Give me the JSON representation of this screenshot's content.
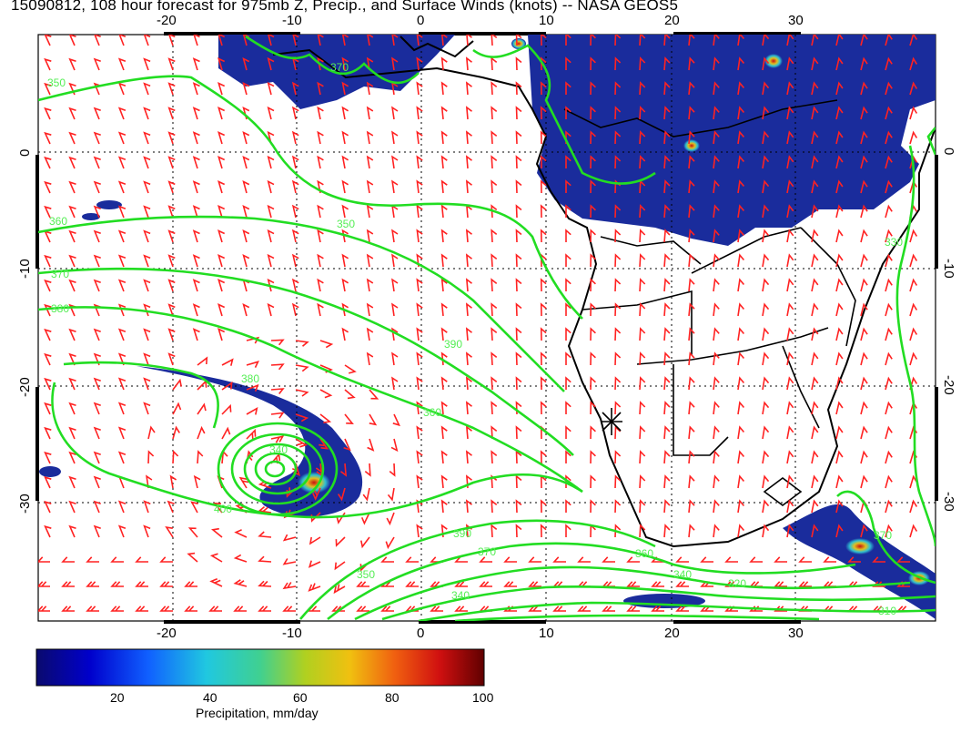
{
  "title": "15090812, 108 hour forecast for 975mb Z, Precip., and Surface Winds (knots) -- NASA GEOS5",
  "map": {
    "lon_range": [
      -30,
      40
    ],
    "lat_range": [
      -40,
      10
    ],
    "lon_ticks": [
      "-20",
      "-10",
      "0",
      "10",
      "20",
      "30"
    ],
    "lat_ticks": [
      "0",
      "-10",
      "-20",
      "-30"
    ],
    "contour_labels": [
      "350",
      "360",
      "370",
      "380",
      "390",
      "400",
      "340",
      "330",
      "310",
      "320"
    ],
    "marker": "star-marker at approx 15E, 23S",
    "colors": {
      "contour": "#22dd22",
      "barbs": "#ff2222",
      "coast": "#000000",
      "precip_low": "#1a2c9c"
    }
  },
  "colorbar": {
    "ticks": [
      "20",
      "40",
      "60",
      "80",
      "100"
    ],
    "label": "Precipitation, mm/day",
    "range": [
      0,
      100
    ]
  }
}
